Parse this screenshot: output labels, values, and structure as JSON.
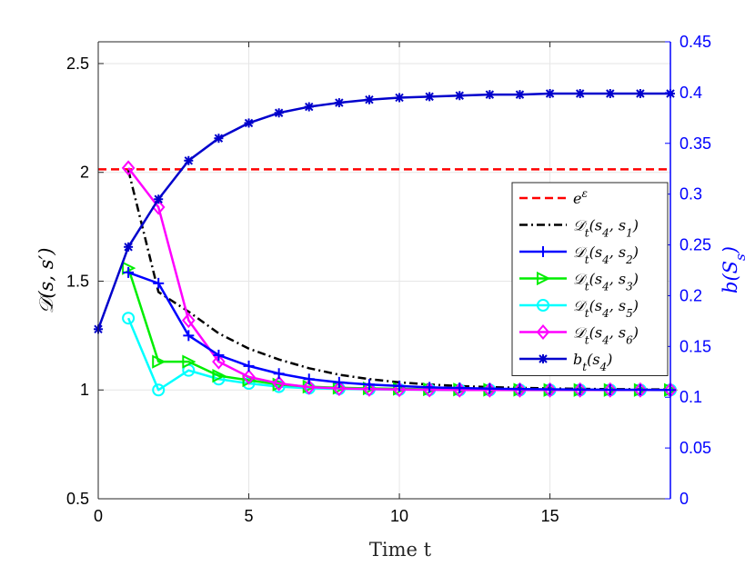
{
  "chart_data": {
    "type": "line",
    "xlabel": "Time t",
    "ylabel_left": "𝒟(s, s′)",
    "ylabel_right": "b(S_s)",
    "xlim": [
      0,
      19
    ],
    "ylim_left": [
      0.5,
      2.6
    ],
    "ylim_right": [
      0,
      0.45
    ],
    "grid": true,
    "legend_position": "right-middle",
    "x_ticks": [
      0,
      5,
      10,
      15
    ],
    "x_tick_labels": [
      "0",
      "5",
      "10",
      "15"
    ],
    "y_left_ticks": [
      0.5,
      1,
      1.5,
      2,
      2.5
    ],
    "y_left_tick_labels": [
      "0.5",
      "1",
      "1.5",
      "2",
      "2.5"
    ],
    "y_right_ticks": [
      0,
      0.05,
      0.1,
      0.15,
      0.2,
      0.25,
      0.3,
      0.35,
      0.4,
      0.45
    ],
    "y_right_tick_labels": [
      "0",
      "0.05",
      "0.1",
      "0.15",
      "0.2",
      "0.25",
      "0.3",
      "0.35",
      "0.4",
      "0.45"
    ],
    "series": [
      {
        "id": "eps",
        "name": "e^ε",
        "legend_label": "eε",
        "axis": "left",
        "color": "#ff0000",
        "dash": "dashed",
        "marker": "none",
        "x": [
          0,
          19
        ],
        "values": [
          2.0138,
          2.0138
        ]
      },
      {
        "id": "d41",
        "name": "𝒟t(s4, s1)",
        "axis": "left",
        "color": "#000000",
        "dash": "dashdot",
        "marker": "none",
        "x": [
          1,
          2,
          3,
          4,
          5,
          6,
          7,
          8,
          9,
          10,
          11,
          12,
          13,
          14,
          15,
          16,
          17,
          18,
          19
        ],
        "values": [
          2.01,
          1.45,
          1.36,
          1.26,
          1.19,
          1.14,
          1.1,
          1.07,
          1.05,
          1.035,
          1.025,
          1.018,
          1.013,
          1.01,
          1.007,
          1.005,
          1.004,
          1.003,
          1.002
        ]
      },
      {
        "id": "d42",
        "name": "𝒟t(s4, s2)",
        "axis": "left",
        "color": "#0000ff",
        "dash": "solid",
        "marker": "plus",
        "x": [
          1,
          2,
          3,
          4,
          5,
          6,
          7,
          8,
          9,
          10,
          11,
          12,
          13,
          14,
          15,
          16,
          17,
          18,
          19
        ],
        "values": [
          1.54,
          1.49,
          1.25,
          1.16,
          1.11,
          1.075,
          1.05,
          1.035,
          1.025,
          1.018,
          1.012,
          1.009,
          1.006,
          1.004,
          1.003,
          1.002,
          1.001,
          1.001,
          1.0
        ]
      },
      {
        "id": "d43",
        "name": "𝒟t(s4, s3)",
        "axis": "left",
        "color": "#00ee00",
        "dash": "solid",
        "marker": "triangle-right",
        "x": [
          1,
          2,
          3,
          4,
          5,
          6,
          7,
          8,
          9,
          10,
          11,
          12,
          13,
          14,
          15,
          16,
          17,
          18,
          19
        ],
        "values": [
          1.56,
          1.13,
          1.13,
          1.065,
          1.045,
          1.025,
          1.015,
          1.01,
          1.007,
          1.005,
          1.003,
          1.002,
          1.001,
          1.001,
          1.0,
          1.0,
          1.0,
          1.0,
          1.0
        ]
      },
      {
        "id": "d45",
        "name": "𝒟t(s4, s5)",
        "axis": "left",
        "color": "#00ffff",
        "dash": "solid",
        "marker": "circle",
        "x": [
          1,
          2,
          3,
          4,
          5,
          6,
          7,
          8,
          9,
          10,
          11,
          12,
          13,
          14,
          15,
          16,
          17,
          18,
          19
        ],
        "values": [
          1.33,
          1.0,
          1.09,
          1.05,
          1.03,
          1.015,
          1.008,
          1.005,
          1.003,
          1.002,
          1.001,
          1.0,
          1.0,
          1.0,
          1.0,
          1.0,
          1.0,
          1.0,
          1.0
        ]
      },
      {
        "id": "d46",
        "name": "𝒟t(s4, s6)",
        "axis": "left",
        "color": "#ff00ff",
        "dash": "solid",
        "marker": "diamond",
        "x": [
          1,
          2,
          3,
          4,
          5,
          6,
          7,
          8,
          9,
          10,
          11,
          12,
          13,
          14,
          15,
          16,
          17,
          18,
          19
        ],
        "values": [
          2.02,
          1.84,
          1.32,
          1.13,
          1.06,
          1.03,
          1.013,
          1.007,
          1.004,
          1.002,
          1.001,
          1.0,
          1.0,
          1.0,
          1.0,
          1.0,
          1.0,
          1.0,
          1.0
        ]
      },
      {
        "id": "b4",
        "name": "bt(s4)",
        "axis": "right",
        "color": "#0000cc",
        "dash": "solid",
        "marker": "asterisk",
        "x": [
          0,
          1,
          2,
          3,
          4,
          5,
          6,
          7,
          8,
          9,
          10,
          11,
          12,
          13,
          14,
          15,
          16,
          17,
          18,
          19
        ],
        "values": [
          0.167,
          0.248,
          0.295,
          0.333,
          0.355,
          0.37,
          0.38,
          0.386,
          0.39,
          0.393,
          0.395,
          0.396,
          0.397,
          0.398,
          0.398,
          0.399,
          0.399,
          0.399,
          0.399,
          0.399
        ]
      }
    ]
  },
  "legend": {
    "items": [
      {
        "series_id": "eps",
        "main": "e",
        "sup": "ε"
      },
      {
        "series_id": "d41",
        "main": "𝒟",
        "sub1": "t",
        "args": "(s",
        "a1": "4",
        "mid": ", s",
        "a2": "1",
        "end": ")"
      },
      {
        "series_id": "d42",
        "main": "𝒟",
        "sub1": "t",
        "args": "(s",
        "a1": "4",
        "mid": ", s",
        "a2": "2",
        "end": ")"
      },
      {
        "series_id": "d43",
        "main": "𝒟",
        "sub1": "t",
        "args": "(s",
        "a1": "4",
        "mid": ", s",
        "a2": "3",
        "end": ")"
      },
      {
        "series_id": "d45",
        "main": "𝒟",
        "sub1": "t",
        "args": "(s",
        "a1": "4",
        "mid": ", s",
        "a2": "5",
        "end": ")"
      },
      {
        "series_id": "d46",
        "main": "𝒟",
        "sub1": "t",
        "args": "(s",
        "a1": "4",
        "mid": ", s",
        "a2": "6",
        "end": ")"
      },
      {
        "series_id": "b4",
        "main": "b",
        "sub1": "t",
        "args": "(s",
        "a1": "4",
        "mid": "",
        "a2": "",
        "end": ")"
      }
    ]
  },
  "colors": {
    "right_axis": "#0000ff",
    "grid": "#e6e6e6",
    "axis": "#262626"
  }
}
